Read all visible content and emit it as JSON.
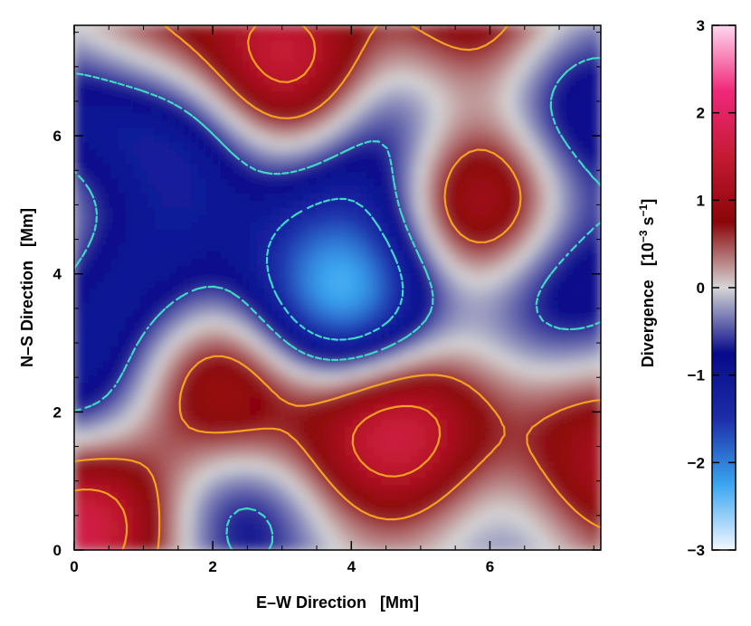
{
  "chart_data": {
    "type": "heatmap",
    "title": "",
    "xlabel": "E–W Direction   [Mm]",
    "ylabel": "N–S Direction   [Mm]",
    "xlim": [
      0,
      7.6
    ],
    "ylim": [
      0,
      7.6
    ],
    "x_ticks": [
      0,
      2,
      4,
      6
    ],
    "y_ticks": [
      0,
      2,
      4,
      6
    ],
    "grid": false,
    "colorbar": {
      "label": "Divergence   [10",
      "label_exp": "−3",
      "label_unit": " s",
      "label_unit_exp": "−1",
      "label_close": "]",
      "range": [
        -3,
        3
      ],
      "ticks": [
        -3,
        -2,
        -1,
        0,
        1,
        2,
        3
      ],
      "tick_labels": [
        "−3",
        "−2",
        "−1",
        "0",
        "1",
        "2",
        "3"
      ],
      "colors": [
        "#f4f8ff",
        "#3aa6f0",
        "#1c2ea8",
        "#070a8a",
        "#d6d6d6",
        "#8a0508",
        "#c41a33",
        "#f0287a",
        "#ffd8ee"
      ]
    },
    "contours": {
      "positive_color": "#f5a020",
      "negative_color": "#3fd8c4",
      "negative_style": "dashed"
    },
    "field": [
      {
        "x": 3.1,
        "y": 6.8,
        "amp": 2.3
      },
      {
        "x": 5.9,
        "y": 5.1,
        "amp": 2.0
      },
      {
        "x": 4.6,
        "y": 1.8,
        "amp": 2.0
      },
      {
        "x": 2.1,
        "y": 2.3,
        "amp": 1.6
      },
      {
        "x": 0.2,
        "y": 0.5,
        "amp": 2.1
      },
      {
        "x": 5.6,
        "y": 7.6,
        "amp": 1.5
      },
      {
        "x": 0.1,
        "y": 5.0,
        "amp": 1.0
      },
      {
        "x": 7.5,
        "y": 1.2,
        "amp": 1.5
      },
      {
        "x": 1.1,
        "y": 7.5,
        "amp": 0.9
      },
      {
        "x": 3.9,
        "y": 3.6,
        "amp": -2.6
      },
      {
        "x": 0.1,
        "y": 6.2,
        "amp": -1.3
      },
      {
        "x": 1.9,
        "y": 6.1,
        "amp": -1.4
      },
      {
        "x": 0.8,
        "y": 4.1,
        "amp": -1.3
      },
      {
        "x": 0.1,
        "y": 2.1,
        "amp": -1.3
      },
      {
        "x": 2.3,
        "y": 0.7,
        "amp": -1.2
      },
      {
        "x": 4.2,
        "y": 5.8,
        "amp": -1.2
      },
      {
        "x": 7.1,
        "y": 6.3,
        "amp": -1.3
      },
      {
        "x": 7.0,
        "y": 3.9,
        "amp": -1.2
      },
      {
        "x": 6.5,
        "y": 0.6,
        "amp": -0.8
      },
      {
        "x": 4.9,
        "y": 6.9,
        "amp": -0.9
      }
    ]
  }
}
